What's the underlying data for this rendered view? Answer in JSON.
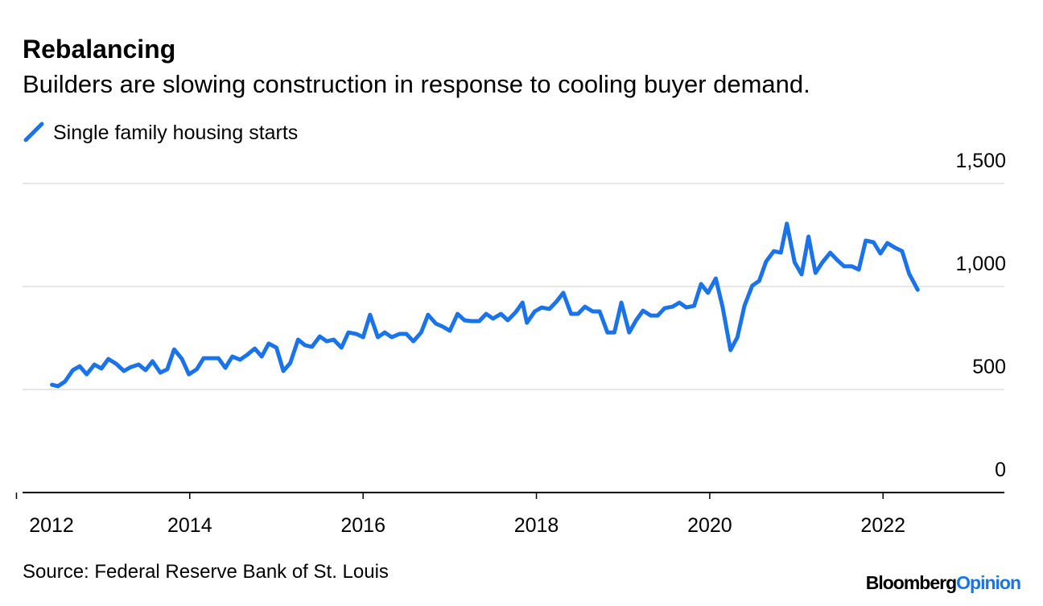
{
  "chart_data": {
    "type": "line",
    "title": "Rebalancing",
    "subtitle": "Builders are slowing construction in response to cooling buyer demand.",
    "source": "Source: Federal Reserve Bank of St. Louis",
    "brand": [
      "Bloomberg",
      "Opinion"
    ],
    "x": [
      2012.41,
      2012.48,
      2012.56,
      2012.65,
      2012.73,
      2012.81,
      2012.9,
      2012.98,
      2013.06,
      2013.15,
      2013.24,
      2013.32,
      2013.41,
      2013.49,
      2013.57,
      2013.66,
      2013.74,
      2013.82,
      2013.91,
      2013.99,
      2014.08,
      2014.16,
      2014.24,
      2014.33,
      2014.41,
      2014.49,
      2014.58,
      2014.66,
      2014.75,
      2014.83,
      2014.91,
      2015.0,
      2015.08,
      2015.16,
      2015.25,
      2015.33,
      2015.41,
      2015.5,
      2015.58,
      2015.66,
      2015.75,
      2015.83,
      2015.92,
      2016.0,
      2016.08,
      2016.17,
      2016.25,
      2016.33,
      2016.42,
      2016.5,
      2016.58,
      2016.67,
      2016.75,
      2016.84,
      2016.92,
      2017.0,
      2017.09,
      2017.17,
      2017.25,
      2017.34,
      2017.42,
      2017.5,
      2017.59,
      2017.67,
      2017.76,
      2017.84,
      2017.89,
      2017.98,
      2018.06,
      2018.15,
      2018.23,
      2018.31,
      2018.4,
      2018.48,
      2018.56,
      2018.65,
      2018.73,
      2018.82,
      2018.9,
      2018.98,
      2019.07,
      2019.15,
      2019.23,
      2019.32,
      2019.4,
      2019.48,
      2019.57,
      2019.65,
      2019.73,
      2019.82,
      2019.9,
      2019.98,
      2020.07,
      2020.15,
      2020.24,
      2020.32,
      2020.4,
      2020.49,
      2020.57,
      2020.65,
      2020.74,
      2020.82,
      2020.89,
      2020.98,
      2021.06,
      2021.14,
      2021.22,
      2021.3,
      2021.39,
      2021.47,
      2021.55,
      2021.64,
      2021.72,
      2021.8,
      2021.89,
      2021.97,
      2022.05,
      2022.14,
      2022.22,
      2022.3,
      2022.4
    ],
    "series": [
      {
        "name": "Single family housing starts",
        "color": "#1a73e8",
        "values": [
          523,
          516,
          539,
          594,
          613,
          574,
          621,
          602,
          648,
          625,
          590,
          609,
          621,
          594,
          637,
          582,
          598,
          695,
          648,
          574,
          598,
          652,
          652,
          652,
          605,
          660,
          645,
          668,
          699,
          660,
          723,
          703,
          590,
          629,
          742,
          715,
          707,
          758,
          734,
          742,
          703,
          777,
          770,
          754,
          863,
          754,
          777,
          754,
          770,
          770,
          734,
          777,
          863,
          820,
          805,
          785,
          867,
          836,
          832,
          832,
          867,
          844,
          867,
          836,
          875,
          922,
          824,
          879,
          898,
          891,
          926,
          969,
          867,
          867,
          902,
          879,
          879,
          777,
          777,
          922,
          777,
          836,
          883,
          859,
          859,
          895,
          902,
          922,
          898,
          906,
          1012,
          969,
          1039,
          898,
          691,
          754,
          906,
          1004,
          1027,
          1121,
          1172,
          1164,
          1305,
          1117,
          1059,
          1242,
          1066,
          1117,
          1164,
          1129,
          1098,
          1098,
          1082,
          1223,
          1215,
          1160,
          1211,
          1188,
          1172,
          1063,
          984
        ]
      }
    ],
    "xlim": [
      2012.07,
      2023.4
    ],
    "xticks": [
      2012,
      2014,
      2016,
      2018,
      2020,
      2022
    ],
    "ylim": [
      0,
      1500
    ],
    "yticks": [
      0,
      500,
      {
        "value": 1000,
        "label": "1,000"
      },
      {
        "value": 1500,
        "label": "1,500"
      }
    ],
    "grid": true
  }
}
